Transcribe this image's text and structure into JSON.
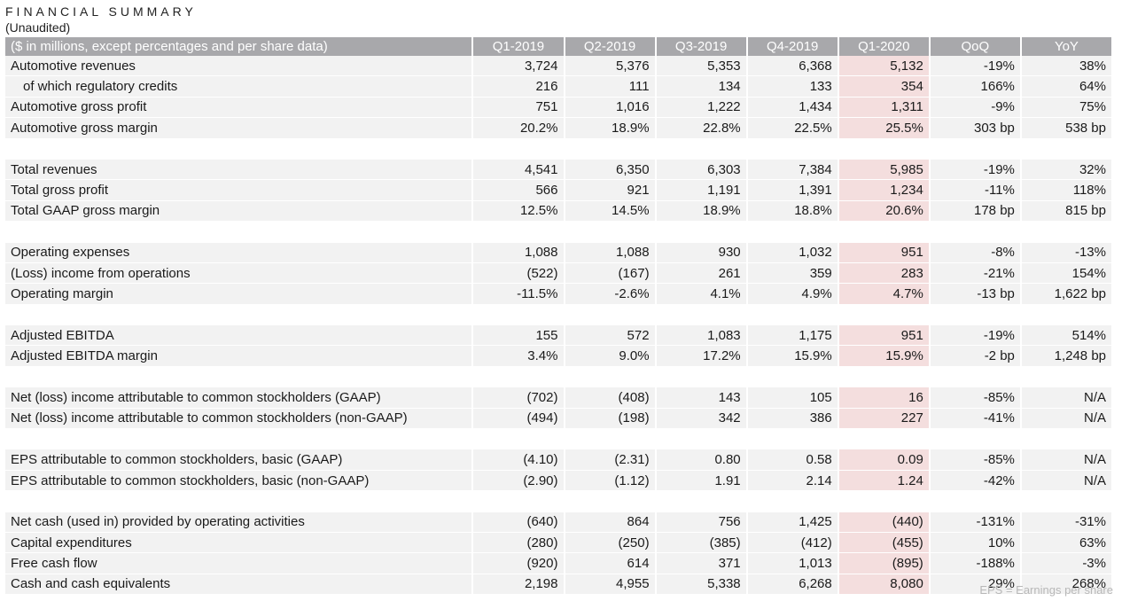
{
  "title": "FINANCIAL SUMMARY",
  "subtitle": "(Unaudited)",
  "header": {
    "label": "($ in millions, except percentages and per share data)",
    "columns": [
      "Q1-2019",
      "Q2-2019",
      "Q3-2019",
      "Q4-2019",
      "Q1-2020",
      "QoQ",
      "YoY"
    ]
  },
  "highlight_color": "#f4dede",
  "header_color": "#a8a8ab",
  "rows": [
    {
      "label": "Automotive revenues",
      "values": [
        "3,724",
        "5,376",
        "5,353",
        "6,368",
        "5,132",
        "-19%",
        "38%"
      ]
    },
    {
      "label": "of which regulatory credits",
      "indent": true,
      "values": [
        "216",
        "111",
        "134",
        "133",
        "354",
        "166%",
        "64%"
      ]
    },
    {
      "label": "Automotive gross profit",
      "values": [
        "751",
        "1,016",
        "1,222",
        "1,434",
        "1,311",
        "-9%",
        "75%"
      ]
    },
    {
      "label": "Automotive gross margin",
      "values": [
        "20.2%",
        "18.9%",
        "22.8%",
        "22.5%",
        "25.5%",
        "303 bp",
        "538 bp"
      ]
    },
    {
      "gap": true
    },
    {
      "label": "Total revenues",
      "values": [
        "4,541",
        "6,350",
        "6,303",
        "7,384",
        "5,985",
        "-19%",
        "32%"
      ]
    },
    {
      "label": "Total gross profit",
      "values": [
        "566",
        "921",
        "1,191",
        "1,391",
        "1,234",
        "-11%",
        "118%"
      ]
    },
    {
      "label": "Total GAAP gross margin",
      "values": [
        "12.5%",
        "14.5%",
        "18.9%",
        "18.8%",
        "20.6%",
        "178 bp",
        "815 bp"
      ]
    },
    {
      "gap": true
    },
    {
      "label": "Operating expenses",
      "values": [
        "1,088",
        "1,088",
        "930",
        "1,032",
        "951",
        "-8%",
        "-13%"
      ]
    },
    {
      "label": "(Loss) income from operations",
      "values": [
        "(522)",
        "(167)",
        "261",
        "359",
        "283",
        "-21%",
        "154%"
      ]
    },
    {
      "label": "Operating margin",
      "values": [
        "-11.5%",
        "-2.6%",
        "4.1%",
        "4.9%",
        "4.7%",
        "-13 bp",
        "1,622 bp"
      ]
    },
    {
      "gap": true
    },
    {
      "label": "Adjusted EBITDA",
      "values": [
        "155",
        "572",
        "1,083",
        "1,175",
        "951",
        "-19%",
        "514%"
      ]
    },
    {
      "label": "Adjusted EBITDA margin",
      "values": [
        "3.4%",
        "9.0%",
        "17.2%",
        "15.9%",
        "15.9%",
        "-2 bp",
        "1,248 bp"
      ]
    },
    {
      "gap": true
    },
    {
      "label": "Net (loss) income attributable to common stockholders (GAAP)",
      "values": [
        "(702)",
        "(408)",
        "143",
        "105",
        "16",
        "-85%",
        "N/A"
      ]
    },
    {
      "label": "Net (loss) income attributable to common stockholders (non-GAAP)",
      "values": [
        "(494)",
        "(198)",
        "342",
        "386",
        "227",
        "-41%",
        "N/A"
      ]
    },
    {
      "gap": true
    },
    {
      "label": "EPS attributable to common stockholders, basic (GAAP)",
      "values": [
        "(4.10)",
        "(2.31)",
        "0.80",
        "0.58",
        "0.09",
        "-85%",
        "N/A"
      ]
    },
    {
      "label": "EPS attributable to common stockholders, basic (non-GAAP)",
      "values": [
        "(2.90)",
        "(1.12)",
        "1.91",
        "2.14",
        "1.24",
        "-42%",
        "N/A"
      ]
    },
    {
      "gap": true
    },
    {
      "label": "Net cash (used in) provided by operating activities",
      "values": [
        "(640)",
        "864",
        "756",
        "1,425",
        "(440)",
        "-131%",
        "-31%"
      ]
    },
    {
      "label": "Capital expenditures",
      "values": [
        "(280)",
        "(250)",
        "(385)",
        "(412)",
        "(455)",
        "10%",
        "63%"
      ]
    },
    {
      "label": "Free cash flow",
      "values": [
        "(920)",
        "614",
        "371",
        "1,013",
        "(895)",
        "-188%",
        "-3%"
      ]
    },
    {
      "label": "Cash and cash equivalents",
      "values": [
        "2,198",
        "4,955",
        "5,338",
        "6,268",
        "8,080",
        "29%",
        "268%"
      ]
    }
  ],
  "footnote": "EPS = Earnings per share"
}
